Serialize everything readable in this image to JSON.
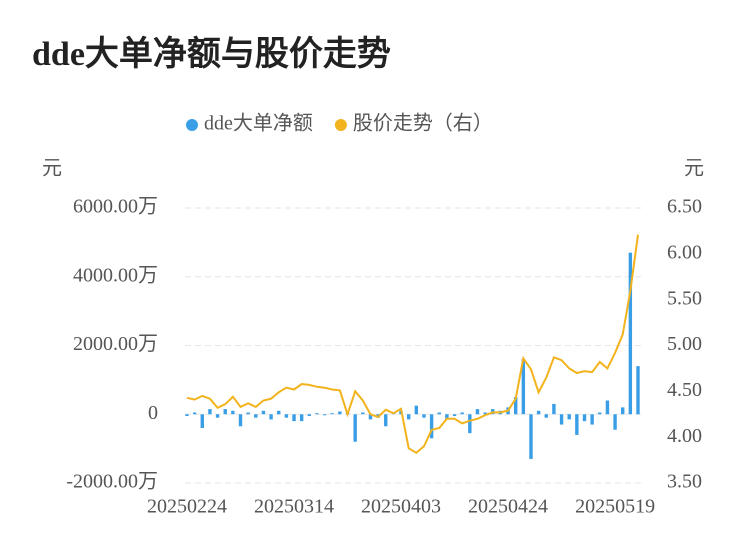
{
  "chart_data": {
    "type": "bar_line",
    "title": "dde大单净额与股价走势",
    "y_label": "元",
    "y2_label": "元",
    "categories": [
      "20250224",
      null,
      null,
      null,
      null,
      null,
      null,
      null,
      null,
      null,
      null,
      null,
      null,
      null,
      "20250314",
      null,
      null,
      null,
      null,
      null,
      null,
      null,
      null,
      null,
      null,
      null,
      null,
      null,
      "20250403",
      null,
      null,
      null,
      null,
      null,
      null,
      null,
      null,
      null,
      null,
      null,
      null,
      null,
      "20250424",
      null,
      null,
      null,
      null,
      null,
      null,
      null,
      null,
      null,
      null,
      null,
      null,
      null,
      "20250519",
      null,
      null,
      null
    ],
    "series": [
      {
        "name": "dde大单净额",
        "type": "bar",
        "color": "#3a9ee6",
        "axis": "y",
        "values": [
          -50,
          50,
          -400,
          150,
          -100,
          150,
          100,
          -350,
          50,
          -100,
          100,
          -150,
          100,
          -100,
          -200,
          -200,
          -50,
          30,
          -30,
          30,
          80,
          50,
          -800,
          50,
          -150,
          -100,
          -350,
          50,
          100,
          -150,
          250,
          -100,
          -700,
          50,
          -150,
          -50,
          50,
          -550,
          150,
          50,
          150,
          100,
          200,
          500,
          1600,
          -1300,
          100,
          -100,
          300,
          -300,
          -150,
          -600,
          -200,
          -300,
          50,
          400,
          -450,
          200,
          4700,
          1400
        ]
      },
      {
        "name": "股价走势（右）",
        "type": "line",
        "color": "#f2b31c",
        "axis": "y2",
        "values": [
          4.43,
          4.41,
          4.45,
          4.42,
          4.32,
          4.36,
          4.44,
          4.33,
          4.37,
          4.33,
          4.4,
          4.42,
          4.49,
          4.54,
          4.52,
          4.58,
          4.57,
          4.55,
          4.54,
          4.52,
          4.51,
          4.25,
          4.5,
          4.4,
          4.25,
          4.22,
          4.3,
          4.26,
          4.31,
          3.88,
          3.83,
          3.9,
          4.08,
          4.1,
          4.2,
          4.2,
          4.15,
          4.18,
          4.2,
          4.24,
          4.27,
          4.27,
          4.29,
          4.42,
          4.86,
          4.74,
          4.49,
          4.65,
          4.87,
          4.84,
          4.75,
          4.7,
          4.72,
          4.71,
          4.82,
          4.75,
          4.92,
          5.12,
          5.6,
          6.21
        ]
      }
    ],
    "ylim": [
      -2000,
      6000
    ],
    "yticks": [
      {
        "value": -2000,
        "label": "-2000.00万"
      },
      0,
      {
        "value": 2000,
        "label": "2000.00万"
      },
      {
        "value": 4000,
        "label": "4000.00万"
      },
      {
        "value": 6000,
        "label": "6000.00万"
      }
    ],
    "y2lim": [
      3.5,
      6.5
    ],
    "y2ticks": [
      {
        "value": 3.5,
        "label": "3.50"
      },
      {
        "value": 4,
        "label": "4.00"
      },
      {
        "value": 4.5,
        "label": "4.50"
      },
      {
        "value": 5,
        "label": "5.00"
      },
      {
        "value": 5.5,
        "label": "5.50"
      },
      {
        "value": 6,
        "label": "6.00"
      },
      {
        "value": 6.5,
        "label": "6.50"
      }
    ],
    "grid": true
  }
}
